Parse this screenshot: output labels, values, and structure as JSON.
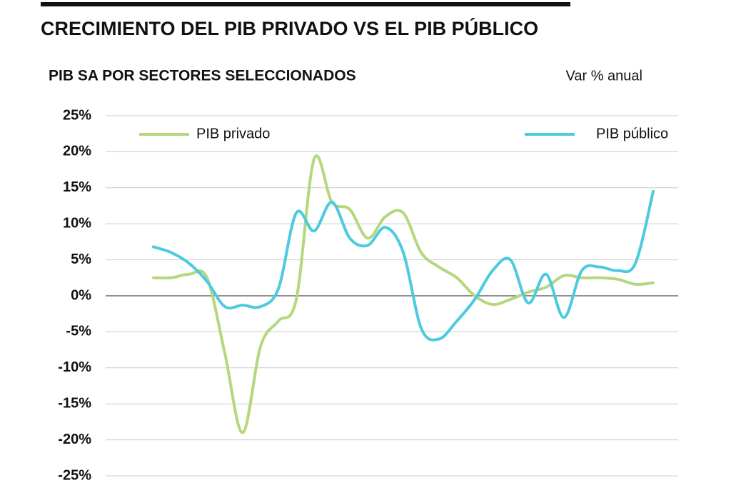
{
  "chart_data": {
    "type": "line",
    "title": "CRECIMIENTO DEL PIB PRIVADO VS EL PIB PÚBLICO",
    "subtitle": "PIB SA POR SECTORES SELECCIONADOS",
    "unit_note": "Var % anual",
    "categories": [
      null,
      null,
      null,
      null,
      null,
      null,
      null,
      null,
      null,
      null,
      null,
      null,
      null,
      null,
      null,
      null,
      null,
      null,
      null,
      null,
      null,
      null,
      null,
      null,
      null,
      null,
      null,
      null,
      null
    ],
    "series": [
      {
        "name": "PIB privado",
        "color": "#b5d77e",
        "values": [
          2.5,
          2.5,
          3.0,
          2.5,
          -8,
          -19,
          -7,
          -3.5,
          -0.5,
          19,
          13,
          12,
          8,
          11,
          11.5,
          6,
          4,
          2.5,
          0,
          -1.2,
          -0.5,
          0.5,
          1.2,
          2.8,
          2.5,
          2.5,
          2.3,
          1.6,
          1.8
        ]
      },
      {
        "name": "PIB público",
        "color": "#4ccbe0",
        "values": [
          6.8,
          6,
          4.5,
          2,
          -1.5,
          -1.3,
          -1.5,
          1,
          11.5,
          9,
          13,
          8,
          7,
          9.5,
          6,
          -4.5,
          -6,
          -3.5,
          -0.5,
          3.5,
          5,
          -1,
          3,
          -3,
          3.5,
          4,
          3.5,
          4.5,
          14.5
        ]
      }
    ],
    "ylim": [
      -25,
      25
    ],
    "yticks": [
      {
        "value": 25,
        "label": "25%"
      },
      {
        "value": 20,
        "label": "20%"
      },
      {
        "value": 15,
        "label": "15%"
      },
      {
        "value": 10,
        "label": "10%"
      },
      {
        "value": 5,
        "label": "5%"
      },
      {
        "value": 0,
        "label": "0%"
      },
      {
        "value": -5,
        "label": "-5%"
      },
      {
        "value": -10,
        "label": "-10%"
      },
      {
        "value": -15,
        "label": "-15%"
      },
      {
        "value": -20,
        "label": "-20%"
      },
      {
        "value": -25,
        "label": "-25%"
      }
    ],
    "grid": true
  }
}
